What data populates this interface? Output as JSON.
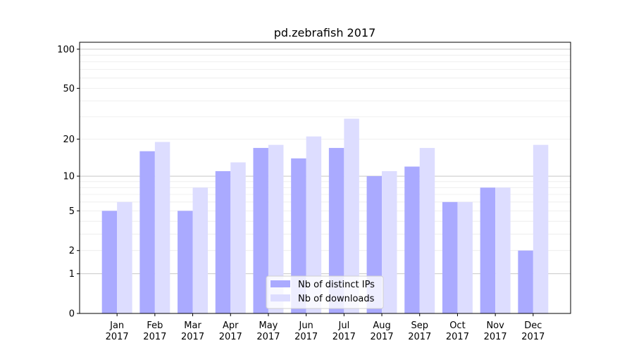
{
  "chart_data": {
    "type": "bar",
    "title": "pd.zebrafish 2017",
    "xlabel": "",
    "ylabel": "",
    "yscale": "log(1+y)",
    "ylim": [
      0,
      113
    ],
    "yticks": [
      0,
      1,
      2,
      5,
      10,
      20,
      50,
      100
    ],
    "ytick_labels": [
      "0",
      "1",
      "2",
      "5",
      "10",
      "20",
      "50",
      "100"
    ],
    "grid": true,
    "legend_placement": "lower center",
    "categories": [
      [
        "Jan",
        "2017"
      ],
      [
        "Feb",
        "2017"
      ],
      [
        "Mar",
        "2017"
      ],
      [
        "Apr",
        "2017"
      ],
      [
        "May",
        "2017"
      ],
      [
        "Jun",
        "2017"
      ],
      [
        "Jul",
        "2017"
      ],
      [
        "Aug",
        "2017"
      ],
      [
        "Sep",
        "2017"
      ],
      [
        "Oct",
        "2017"
      ],
      [
        "Nov",
        "2017"
      ],
      [
        "Dec",
        "2017"
      ]
    ],
    "series": [
      {
        "name": "Nb of distinct IPs",
        "color": "#aaaaff",
        "values": [
          5,
          16,
          5,
          11,
          17,
          14,
          17,
          10,
          12,
          6,
          8,
          2
        ]
      },
      {
        "name": "Nb of downloads",
        "color": "#ddddff",
        "values": [
          6,
          19,
          8,
          13,
          18,
          21,
          29,
          11,
          17,
          6,
          8,
          18
        ]
      }
    ]
  }
}
